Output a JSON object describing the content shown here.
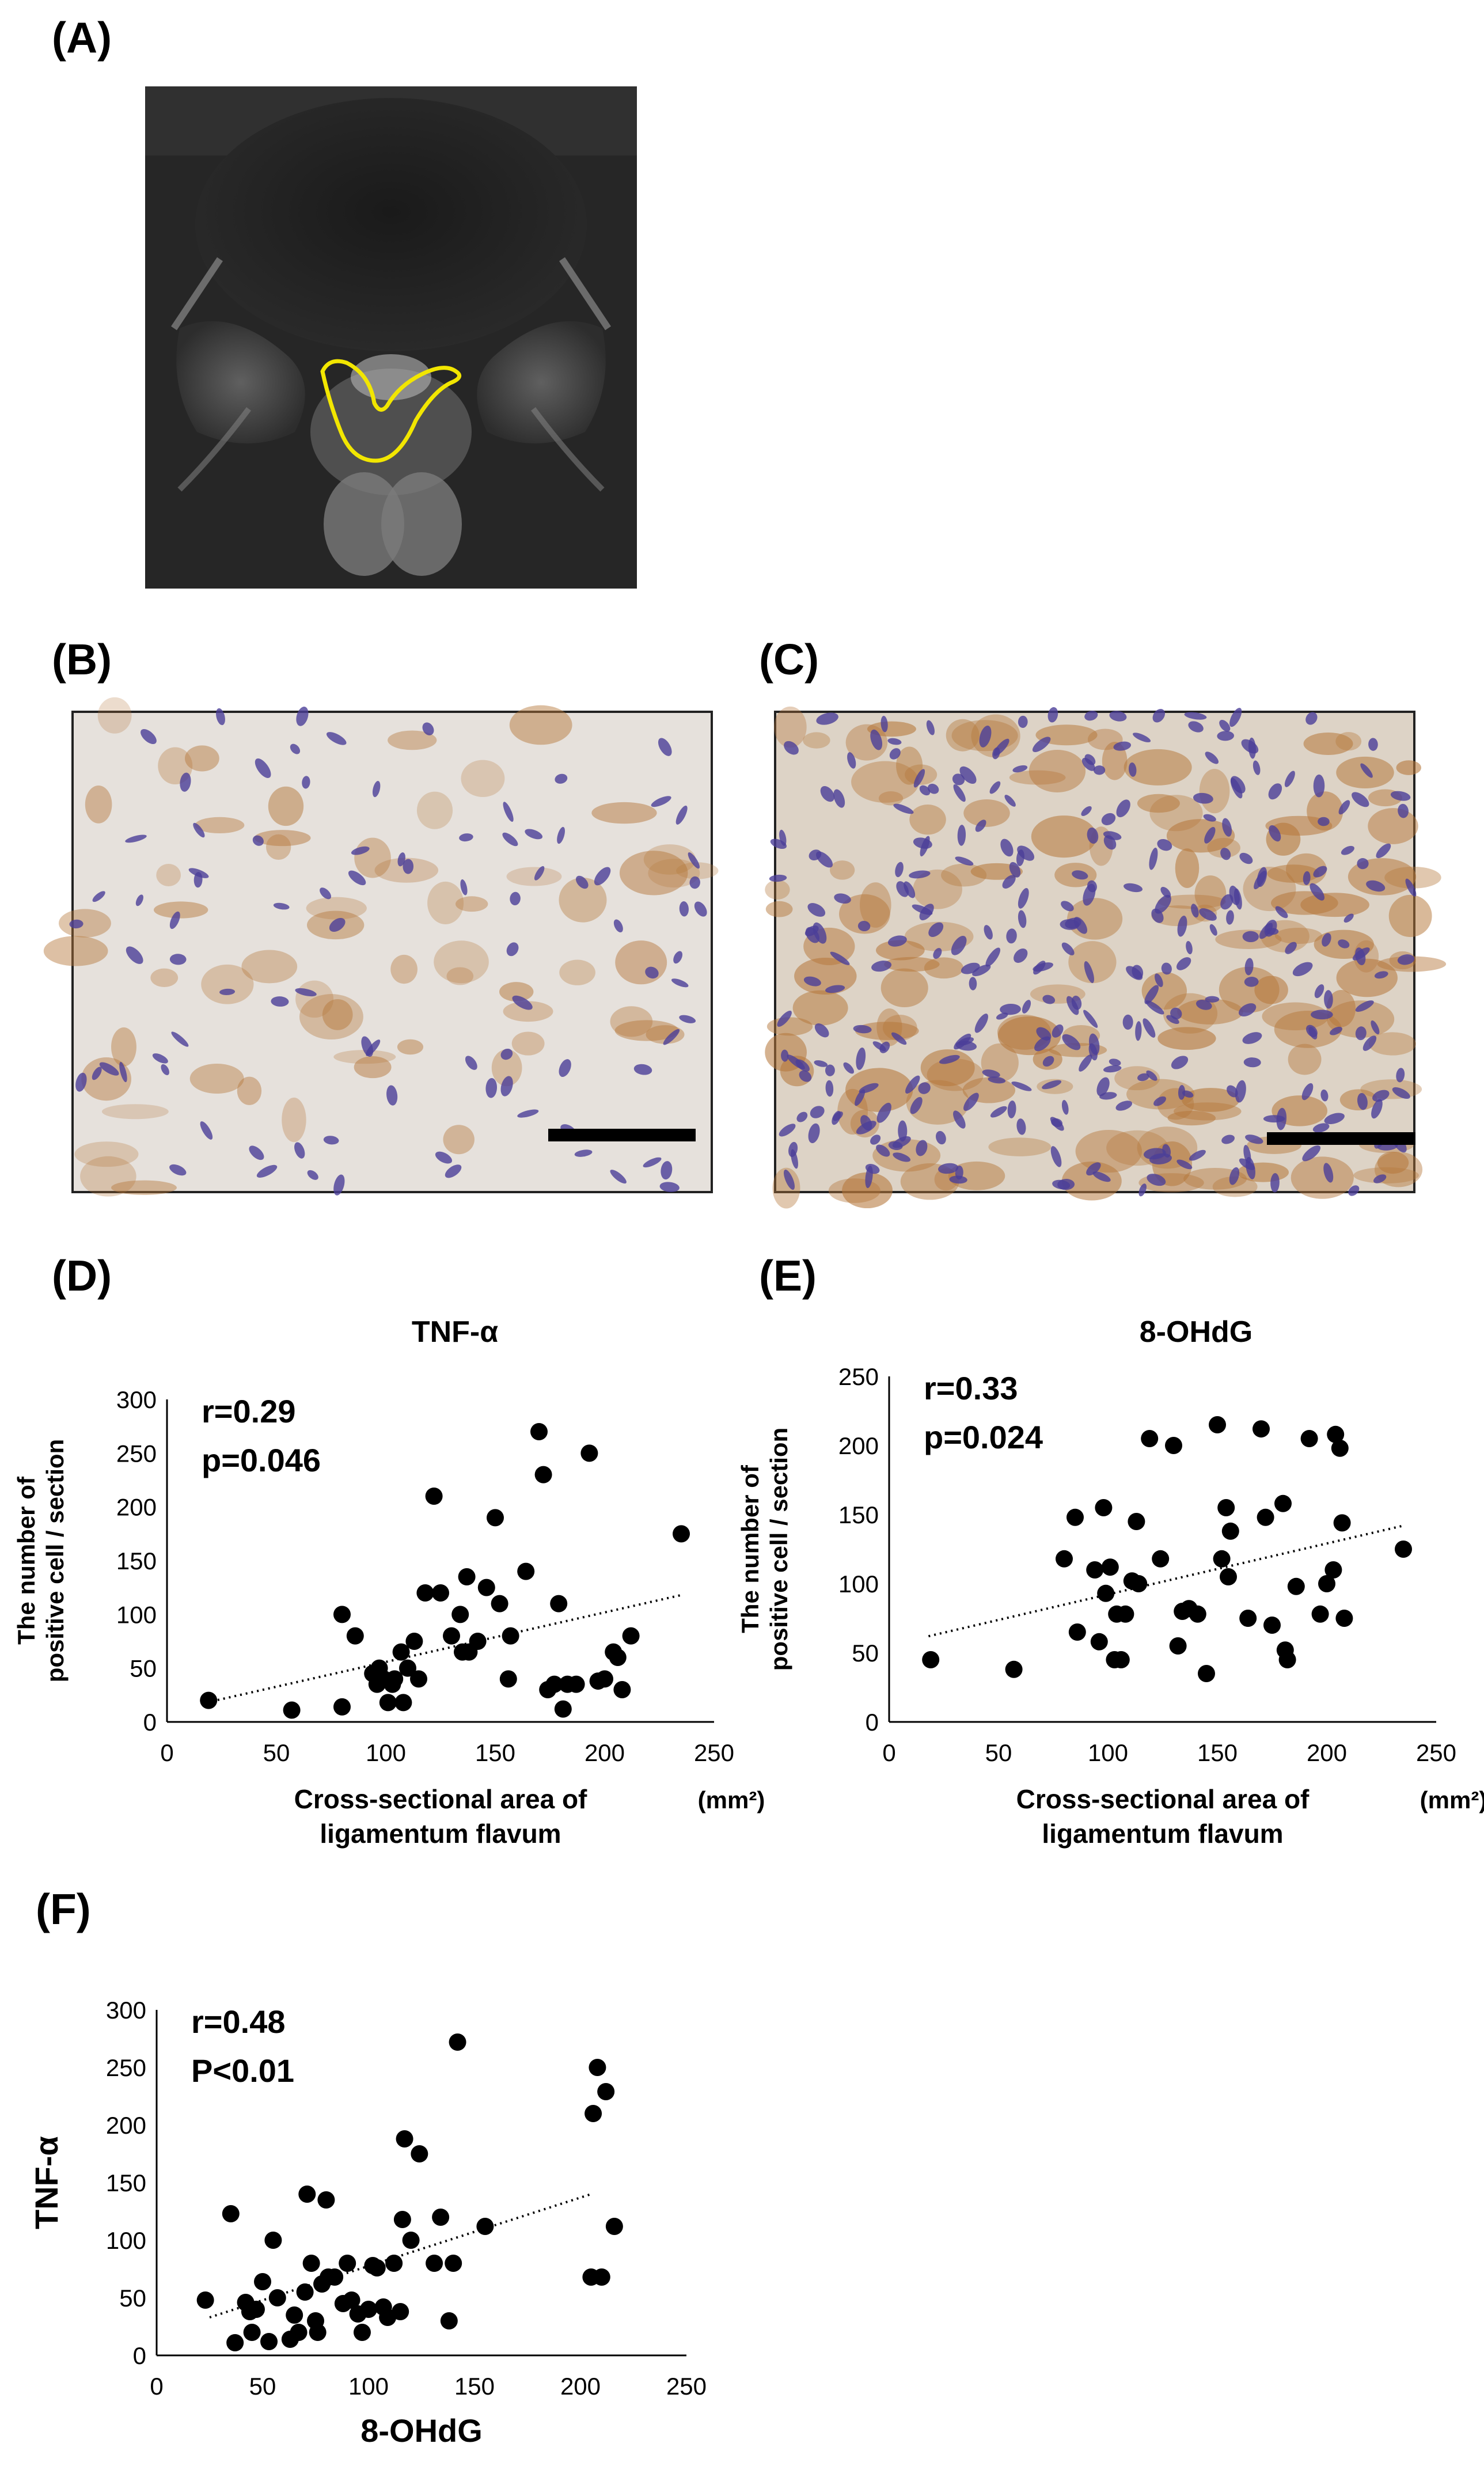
{
  "panels": {
    "A": "(A)",
    "B": "(B)",
    "C": "(C)",
    "D": "(D)",
    "E": "(E)",
    "F": "(F)"
  },
  "colors": {
    "outline": "#f2e600",
    "stain_brown": "#b5773a",
    "stain_blue": "#4b3f98",
    "background_tissue": "#e8e2dc",
    "scale_bar": "#000000",
    "point": "#000000"
  },
  "chart_data": [
    {
      "id": "D",
      "type": "scatter",
      "title": "TNF-α",
      "xlabel_lines": [
        "Cross-sectional area of",
        "ligamentum flavum"
      ],
      "x_unit": "(mm²)",
      "ylabel_lines": [
        "The number of",
        "positive cell / section"
      ],
      "stat_r": "r=0.29",
      "stat_p": "p=0.046",
      "xlim": [
        0,
        250
      ],
      "ylim": [
        0,
        300
      ],
      "xticks": [
        "0",
        "50",
        "100",
        "150",
        "200",
        "250"
      ],
      "yticks": [
        "0",
        "50",
        "100",
        "150",
        "200",
        "250",
        "300"
      ],
      "trendline": {
        "x": [
          18,
          235
        ],
        "y": [
          18,
          118
        ],
        "style": "dotted"
      },
      "points": [
        [
          19,
          20
        ],
        [
          57,
          11
        ],
        [
          80,
          100
        ],
        [
          80,
          14
        ],
        [
          86,
          80
        ],
        [
          94,
          45
        ],
        [
          96,
          35
        ],
        [
          97,
          50
        ],
        [
          99,
          40
        ],
        [
          101,
          18
        ],
        [
          103,
          35
        ],
        [
          104,
          40
        ],
        [
          107,
          65
        ],
        [
          108,
          18
        ],
        [
          110,
          50
        ],
        [
          113,
          75
        ],
        [
          115,
          40
        ],
        [
          118,
          120
        ],
        [
          122,
          210
        ],
        [
          125,
          120
        ],
        [
          130,
          80
        ],
        [
          134,
          100
        ],
        [
          135,
          65
        ],
        [
          137,
          135
        ],
        [
          138,
          65
        ],
        [
          142,
          75
        ],
        [
          146,
          125
        ],
        [
          150,
          190
        ],
        [
          152,
          110
        ],
        [
          156,
          40
        ],
        [
          157,
          80
        ],
        [
          164,
          140
        ],
        [
          170,
          270
        ],
        [
          172,
          230
        ],
        [
          174,
          30
        ],
        [
          177,
          35
        ],
        [
          179,
          110
        ],
        [
          181,
          12
        ],
        [
          183,
          35
        ],
        [
          187,
          35
        ],
        [
          193,
          250
        ],
        [
          197,
          38
        ],
        [
          200,
          40
        ],
        [
          204,
          65
        ],
        [
          206,
          60
        ],
        [
          208,
          30
        ],
        [
          212,
          80
        ],
        [
          235,
          175
        ]
      ]
    },
    {
      "id": "E",
      "type": "scatter",
      "title": "8-OHdG",
      "xlabel_lines": [
        "Cross-sectional area of",
        "ligamentum flavum"
      ],
      "x_unit": "(mm²)",
      "ylabel_lines": [
        "The number of",
        "positive cell / section"
      ],
      "stat_r": "r=0.33",
      "stat_p": "p=0.024",
      "xlim": [
        0,
        250
      ],
      "ylim": [
        0,
        250
      ],
      "xticks": [
        "0",
        "50",
        "100",
        "150",
        "200",
        "250"
      ],
      "yticks": [
        "0",
        "50",
        "100",
        "150",
        "200",
        "250"
      ],
      "trendline": {
        "x": [
          18,
          235
        ],
        "y": [
          62,
          142
        ],
        "style": "dotted"
      },
      "points": [
        [
          19,
          45
        ],
        [
          57,
          38
        ],
        [
          80,
          118
        ],
        [
          85,
          148
        ],
        [
          86,
          65
        ],
        [
          94,
          110
        ],
        [
          96,
          58
        ],
        [
          98,
          155
        ],
        [
          99,
          93
        ],
        [
          101,
          112
        ],
        [
          103,
          45
        ],
        [
          104,
          78
        ],
        [
          106,
          45
        ],
        [
          108,
          78
        ],
        [
          111,
          102
        ],
        [
          113,
          145
        ],
        [
          114,
          100
        ],
        [
          119,
          205
        ],
        [
          124,
          118
        ],
        [
          130,
          200
        ],
        [
          132,
          55
        ],
        [
          134,
          80
        ],
        [
          137,
          82
        ],
        [
          141,
          78
        ],
        [
          145,
          35
        ],
        [
          150,
          215
        ],
        [
          152,
          118
        ],
        [
          154,
          155
        ],
        [
          155,
          105
        ],
        [
          156,
          138
        ],
        [
          164,
          75
        ],
        [
          170,
          212
        ],
        [
          172,
          148
        ],
        [
          175,
          70
        ],
        [
          180,
          158
        ],
        [
          181,
          52
        ],
        [
          182,
          45
        ],
        [
          186,
          98
        ],
        [
          192,
          205
        ],
        [
          197,
          78
        ],
        [
          200,
          100
        ],
        [
          203,
          110
        ],
        [
          204,
          208
        ],
        [
          206,
          198
        ],
        [
          207,
          144
        ],
        [
          208,
          75
        ],
        [
          235,
          125
        ]
      ]
    },
    {
      "id": "F",
      "type": "scatter",
      "title": "",
      "xlabel": "8-OHdG",
      "ylabel": "TNF-α",
      "stat_r": "r=0.48",
      "stat_p": "P<0.01",
      "xlim": [
        0,
        250
      ],
      "ylim": [
        0,
        300
      ],
      "xticks": [
        "0",
        "50",
        "100",
        "150",
        "200",
        "250"
      ],
      "yticks": [
        "0",
        "50",
        "100",
        "150",
        "200",
        "250",
        "300"
      ],
      "trendline": {
        "x": [
          25,
          205
        ],
        "y": [
          33,
          140
        ],
        "style": "dotted"
      },
      "points": [
        [
          23,
          48
        ],
        [
          35,
          123
        ],
        [
          37,
          11
        ],
        [
          42,
          46
        ],
        [
          44,
          38
        ],
        [
          45,
          20
        ],
        [
          47,
          40
        ],
        [
          50,
          64
        ],
        [
          53,
          12
        ],
        [
          55,
          100
        ],
        [
          57,
          50
        ],
        [
          63,
          14
        ],
        [
          65,
          35
        ],
        [
          67,
          20
        ],
        [
          70,
          55
        ],
        [
          71,
          140
        ],
        [
          73,
          80
        ],
        [
          75,
          30
        ],
        [
          76,
          20
        ],
        [
          78,
          62
        ],
        [
          80,
          135
        ],
        [
          81,
          68
        ],
        [
          84,
          68
        ],
        [
          88,
          45
        ],
        [
          90,
          80
        ],
        [
          92,
          48
        ],
        [
          95,
          36
        ],
        [
          97,
          20
        ],
        [
          100,
          40
        ],
        [
          102,
          78
        ],
        [
          104,
          76
        ],
        [
          107,
          42
        ],
        [
          109,
          33
        ],
        [
          112,
          80
        ],
        [
          115,
          38
        ],
        [
          116,
          118
        ],
        [
          117,
          188
        ],
        [
          120,
          100
        ],
        [
          124,
          175
        ],
        [
          131,
          80
        ],
        [
          134,
          120
        ],
        [
          138,
          30
        ],
        [
          140,
          80
        ],
        [
          142,
          272
        ],
        [
          155,
          112
        ],
        [
          205,
          68
        ],
        [
          206,
          210
        ],
        [
          208,
          250
        ],
        [
          210,
          68
        ],
        [
          212,
          229
        ],
        [
          216,
          112
        ]
      ]
    }
  ]
}
